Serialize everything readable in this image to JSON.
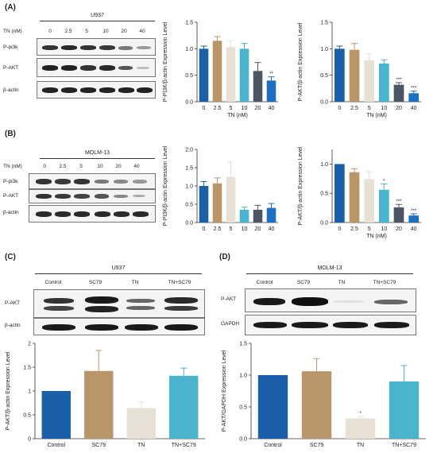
{
  "panels": {
    "A": {
      "letter": "(A)",
      "cell_line": "U937",
      "tn_label": "TN (nM)",
      "lanes": [
        "0",
        "2.5",
        "5",
        "10",
        "20",
        "40"
      ],
      "rows": [
        "P-pi3k",
        "P-AKT",
        "β-actin"
      ]
    },
    "B": {
      "letter": "(B)",
      "cell_line": "MOLM-13",
      "tn_label": "TN (nM)",
      "lanes": [
        "0",
        "2.5",
        "5",
        "10",
        "20",
        "40"
      ],
      "rows": [
        "P-pi3k",
        "P-AKT",
        "β-actin"
      ]
    },
    "C": {
      "letter": "(C)",
      "cell_line": "U937",
      "lanes": [
        "Control",
        "SC79",
        "TN",
        "TN+SC79"
      ],
      "rows": [
        "P-AKT",
        "β-actin"
      ]
    },
    "D": {
      "letter": "(D)",
      "cell_line": "MOLM-13",
      "lanes": [
        "Control",
        "SC79",
        "TN",
        "TN+SC79"
      ],
      "rows": [
        "P-AKT",
        "GAPDH"
      ]
    }
  },
  "colors": [
    "#1a5fa8",
    "#b8966a",
    "#e7e0d4",
    "#49b4cc",
    "#4b5563",
    "#1f6fc0"
  ],
  "chart_data": [
    {
      "id": "A1",
      "type": "bar",
      "categories": [
        "0",
        "2.5",
        "5",
        "10",
        "20",
        "40"
      ],
      "values": [
        1.0,
        1.15,
        1.03,
        1.0,
        0.58,
        0.4
      ],
      "errors": [
        0.05,
        0.08,
        0.12,
        0.1,
        0.16,
        0.07
      ],
      "sig": [
        "",
        "",
        "",
        "",
        "",
        "**"
      ],
      "xlabel": "TN (nM)",
      "ylabel": "P-PI3K/β-actin Expression Level",
      "ylim": [
        0,
        1.5
      ],
      "ticks": [
        "0.0",
        "0.5",
        "1.0",
        "1.5"
      ]
    },
    {
      "id": "A2",
      "type": "bar",
      "categories": [
        "0",
        "2.5",
        "5",
        "10",
        "20",
        "40"
      ],
      "values": [
        1.0,
        0.98,
        0.78,
        0.72,
        0.32,
        0.16
      ],
      "errors": [
        0.05,
        0.12,
        0.12,
        0.07,
        0.04,
        0.04
      ],
      "sig": [
        "",
        "",
        "",
        "",
        "***",
        "***"
      ],
      "xlabel": "TN (nM)",
      "ylabel": "P-AKT/β-actin Expression Level",
      "ylim": [
        0,
        1.5
      ],
      "ticks": [
        "0.0",
        "0.5",
        "1.0",
        "1.5"
      ]
    },
    {
      "id": "B1",
      "type": "bar",
      "categories": [
        "0",
        "2.5",
        "5",
        "10",
        "20",
        "40"
      ],
      "values": [
        1.0,
        1.07,
        1.25,
        0.35,
        0.35,
        0.4
      ],
      "errors": [
        0.12,
        0.15,
        0.4,
        0.07,
        0.12,
        0.12
      ],
      "sig": [
        "",
        "",
        "",
        "",
        "",
        ""
      ],
      "xlabel": "",
      "ylabel": "P-PI3K/β-actin Expression Level",
      "ylim": [
        0,
        2.0
      ],
      "ticks": [
        "0.0",
        "0.5",
        "1.0",
        "1.5",
        "2.0"
      ]
    },
    {
      "id": "B2",
      "type": "bar",
      "categories": [
        "0",
        "2.5",
        "5",
        "10",
        "20",
        "40"
      ],
      "values": [
        1.0,
        0.86,
        0.74,
        0.56,
        0.26,
        0.12
      ],
      "errors": [
        0.0,
        0.06,
        0.13,
        0.1,
        0.05,
        0.03
      ],
      "sig": [
        "",
        "",
        "",
        "*",
        "***",
        "***"
      ],
      "xlabel": "TN (nM)",
      "ylabel": "P-AKT/β-actin Expression Level",
      "ylim": [
        0,
        1.25
      ],
      "ticks": [
        "0.0",
        "0.5",
        "1.0"
      ]
    },
    {
      "id": "C1",
      "type": "bar",
      "categories": [
        "Control",
        "SC79",
        "TN",
        "TN+SC79"
      ],
      "values": [
        1.0,
        1.42,
        0.64,
        1.32
      ],
      "errors": [
        0.0,
        0.43,
        0.13,
        0.16
      ],
      "sig": [
        "",
        "",
        "",
        ""
      ],
      "xlabel": "",
      "ylabel": "P-AKT/β-actin Expression Level",
      "ylim": [
        0,
        2.0
      ],
      "ticks": [
        "0",
        "0.5",
        "1",
        "1.5",
        "2"
      ]
    },
    {
      "id": "D1",
      "type": "bar",
      "categories": [
        "Control",
        "SC79",
        "TN",
        "TN+SC79"
      ],
      "values": [
        1.0,
        1.06,
        0.32,
        0.9
      ],
      "errors": [
        0.0,
        0.2,
        0.03,
        0.25
      ],
      "sig": [
        "",
        "",
        "*",
        ""
      ],
      "xlabel": "",
      "ylabel": "P-AKT/GAPDH Expression Level",
      "ylim": [
        0,
        1.5
      ],
      "ticks": [
        "0.0",
        "0.5",
        "1.0",
        "1.5"
      ]
    }
  ]
}
